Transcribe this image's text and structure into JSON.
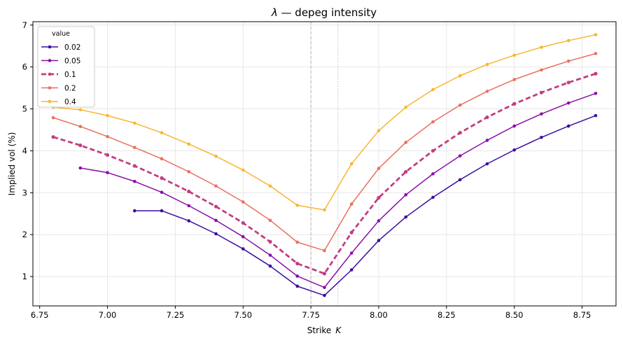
{
  "chart_data": {
    "type": "line",
    "title_prefix": "λ",
    "title_rest": " — depeg intensity",
    "xlabel": "Strike",
    "xlabel_symbol": "K",
    "ylabel": "Implied vol (%)",
    "xlim": [
      6.725,
      8.875
    ],
    "ylim": [
      0.3,
      7.08
    ],
    "xticks": [
      "6.75",
      "7.00",
      "7.25",
      "7.50",
      "7.75",
      "8.00",
      "8.25",
      "8.50",
      "8.75"
    ],
    "yticks": [
      "1",
      "2",
      "3",
      "4",
      "5",
      "6",
      "7"
    ],
    "grid": true,
    "vlines": [
      {
        "x": 7.75,
        "style": "dashed",
        "color": "#aaaaaa"
      },
      {
        "x": 7.85,
        "style": "dotted",
        "color": "#aaaaaa"
      }
    ],
    "legend": {
      "title": "value",
      "placement": "top-left"
    },
    "series": [
      {
        "name": "0.02",
        "color": "#3b0f9f",
        "dashed": false,
        "x": [
          7.1,
          7.2,
          7.3,
          7.4,
          7.5,
          7.6,
          7.7,
          7.8,
          7.9,
          8.0,
          8.1,
          8.2,
          8.3,
          8.4,
          8.5,
          8.6,
          8.7,
          8.8
        ],
        "y": [
          2.57,
          2.57,
          2.33,
          2.02,
          1.66,
          1.25,
          0.77,
          0.55,
          1.16,
          1.86,
          2.42,
          2.89,
          3.31,
          3.69,
          4.02,
          4.32,
          4.59,
          4.84
        ]
      },
      {
        "name": "0.05",
        "color": "#8b0ea8",
        "dashed": false,
        "x": [
          6.9,
          7.0,
          7.1,
          7.2,
          7.3,
          7.4,
          7.5,
          7.6,
          7.7,
          7.8,
          7.9,
          8.0,
          8.1,
          8.2,
          8.3,
          8.4,
          8.5,
          8.6,
          8.7,
          8.8
        ],
        "y": [
          3.59,
          3.48,
          3.27,
          3.01,
          2.69,
          2.34,
          1.95,
          1.51,
          1.01,
          0.74,
          1.56,
          2.33,
          2.95,
          3.45,
          3.88,
          4.25,
          4.59,
          4.88,
          5.14,
          5.37
        ]
      },
      {
        "name": "0.1",
        "color": "#c33d80",
        "dashed": true,
        "x": [
          6.8,
          6.9,
          7.0,
          7.1,
          7.2,
          7.3,
          7.4,
          7.5,
          7.6,
          7.7,
          7.8,
          7.9,
          8.0,
          8.1,
          8.2,
          8.3,
          8.4,
          8.5,
          8.6,
          8.7,
          8.8
        ],
        "y": [
          4.33,
          4.13,
          3.9,
          3.64,
          3.35,
          3.03,
          2.67,
          2.28,
          1.83,
          1.31,
          1.07,
          2.05,
          2.88,
          3.5,
          4.0,
          4.43,
          4.8,
          5.12,
          5.39,
          5.63,
          5.84
        ]
      },
      {
        "name": "0.2",
        "color": "#e8705f",
        "dashed": false,
        "x": [
          6.8,
          6.9,
          7.0,
          7.1,
          7.2,
          7.3,
          7.4,
          7.5,
          7.6,
          7.7,
          7.8,
          7.9,
          8.0,
          8.1,
          8.2,
          8.3,
          8.4,
          8.5,
          8.6,
          8.7,
          8.8
        ],
        "y": [
          4.79,
          4.58,
          4.34,
          4.08,
          3.81,
          3.5,
          3.16,
          2.78,
          2.34,
          1.82,
          1.62,
          2.73,
          3.58,
          4.2,
          4.69,
          5.09,
          5.42,
          5.7,
          5.93,
          6.14,
          6.32
        ]
      },
      {
        "name": "0.4",
        "color": "#f8b62f",
        "dashed": false,
        "x": [
          6.8,
          6.9,
          7.0,
          7.1,
          7.2,
          7.3,
          7.4,
          7.5,
          7.6,
          7.7,
          7.8,
          7.9,
          8.0,
          8.1,
          8.2,
          8.3,
          8.4,
          8.5,
          8.6,
          8.7,
          8.8
        ],
        "y": [
          5.04,
          4.98,
          4.84,
          4.66,
          4.43,
          4.16,
          3.87,
          3.54,
          3.16,
          2.7,
          2.59,
          3.69,
          4.48,
          5.04,
          5.46,
          5.79,
          6.06,
          6.28,
          6.47,
          6.63,
          6.77
        ]
      }
    ]
  }
}
